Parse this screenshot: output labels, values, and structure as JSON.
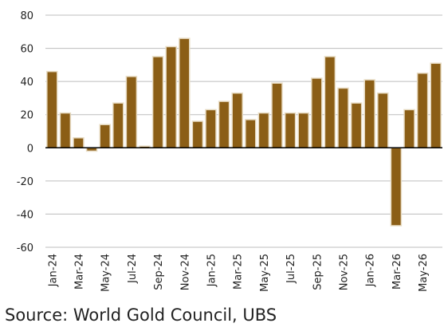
{
  "chart_data": {
    "type": "bar",
    "categories": [
      "Jan-24",
      null,
      "Mar-24",
      null,
      "May-24",
      null,
      "Jul-24",
      null,
      "Sep-24",
      null,
      "Nov-24",
      null,
      "Jan-25",
      null,
      "Mar-25",
      null,
      "May-25",
      null,
      "Jul-25",
      null,
      "Sep-25",
      null,
      "Nov-25",
      null,
      "Jan-26",
      null,
      "Mar-26",
      null,
      "May-26",
      null
    ],
    "values": [
      46,
      21,
      6,
      -2,
      14,
      27,
      43,
      1,
      55,
      61,
      66,
      16,
      23,
      28,
      33,
      17,
      21,
      39,
      21,
      21,
      42,
      55,
      36,
      27,
      41,
      33,
      -47,
      23,
      45,
      51
    ],
    "color": "#8b5e16",
    "ylim": [
      -60,
      80
    ],
    "yticks": [
      -60,
      -40,
      -20,
      0,
      20,
      40,
      60,
      80
    ],
    "grid": true,
    "source": "Source: World Gold Council, UBS"
  }
}
